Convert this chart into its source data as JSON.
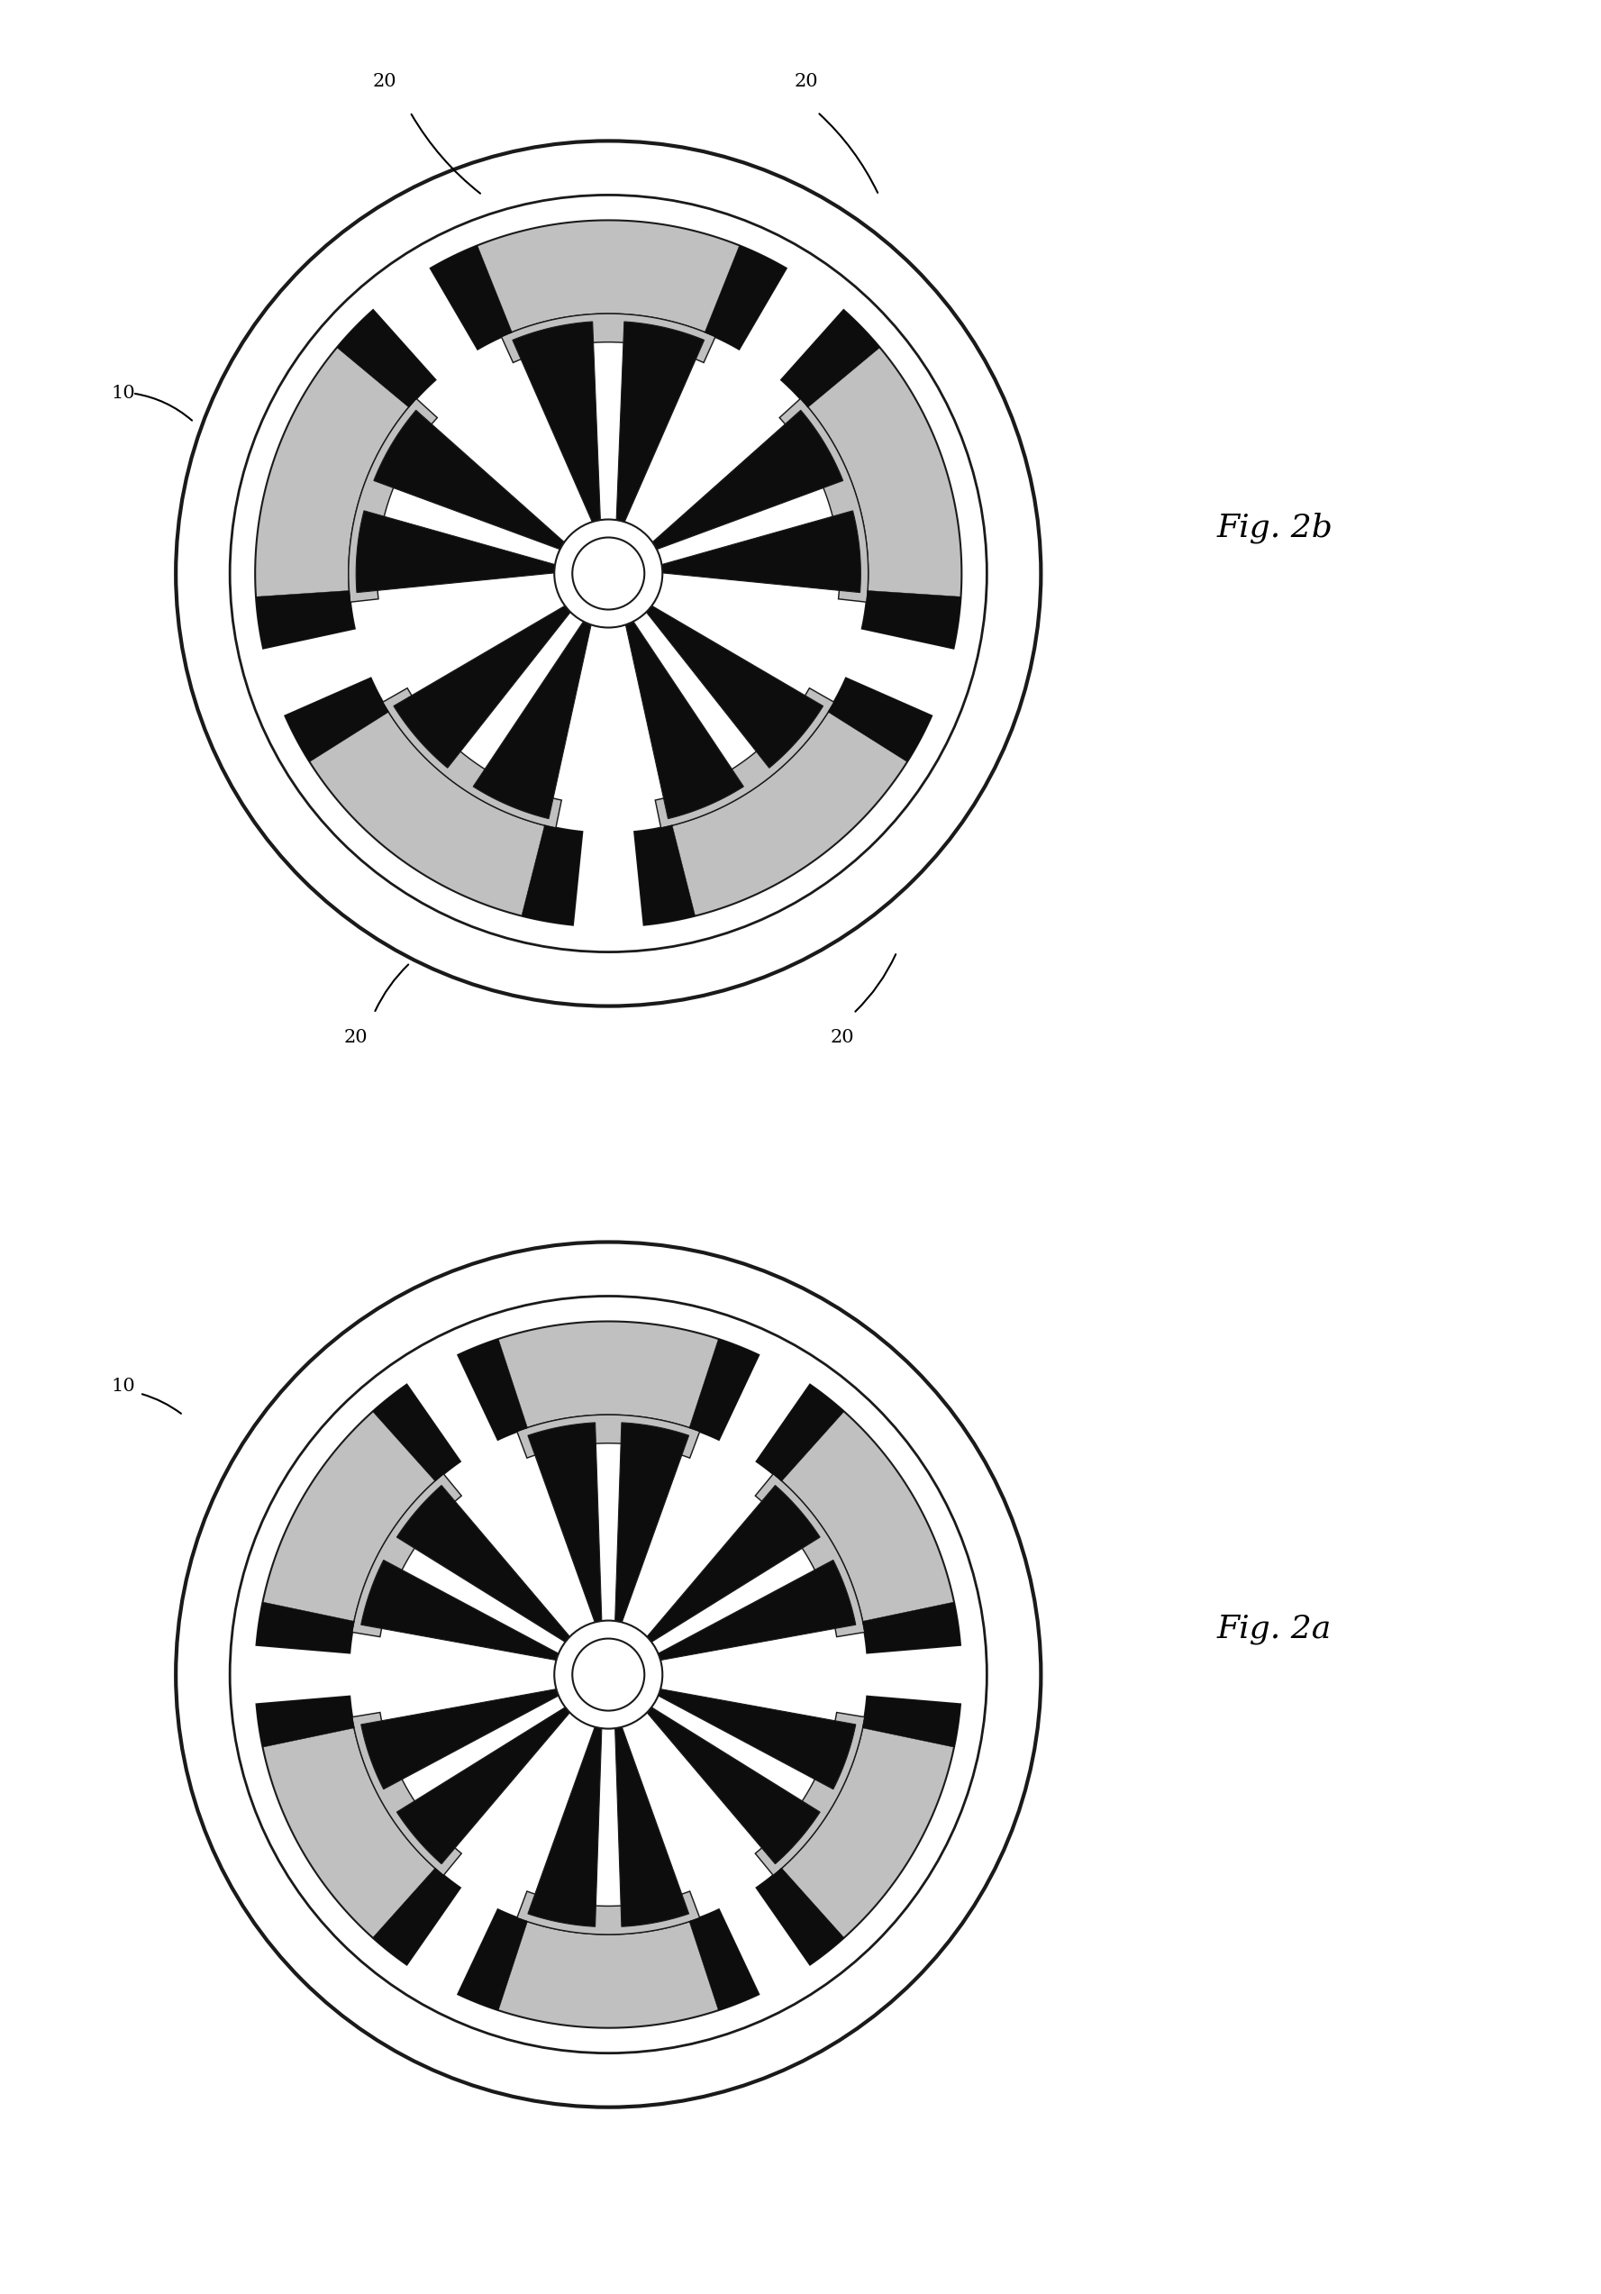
{
  "fig_width": 17.77,
  "fig_height": 25.46,
  "background_color": "#ffffff",
  "line_color": "#1a1a1a",
  "black_fill": "#0d0d0d",
  "gray_fill": "#c0c0c0",
  "white_fill": "#ffffff",
  "fig2a_label": "Fig. 2a",
  "fig2b_label": "Fig. 2b",
  "n_sectors_2a": 6,
  "n_sectors_2b": 5,
  "R_outer": 1.2,
  "R_ring_inner": 1.05,
  "R_coil_outer": 0.98,
  "R_coil_inner": 0.72,
  "R_arm_outer": 0.7,
  "R_center": 0.1,
  "lw_outer": 3.0,
  "lw_ring": 2.0,
  "lw_thin": 1.5
}
